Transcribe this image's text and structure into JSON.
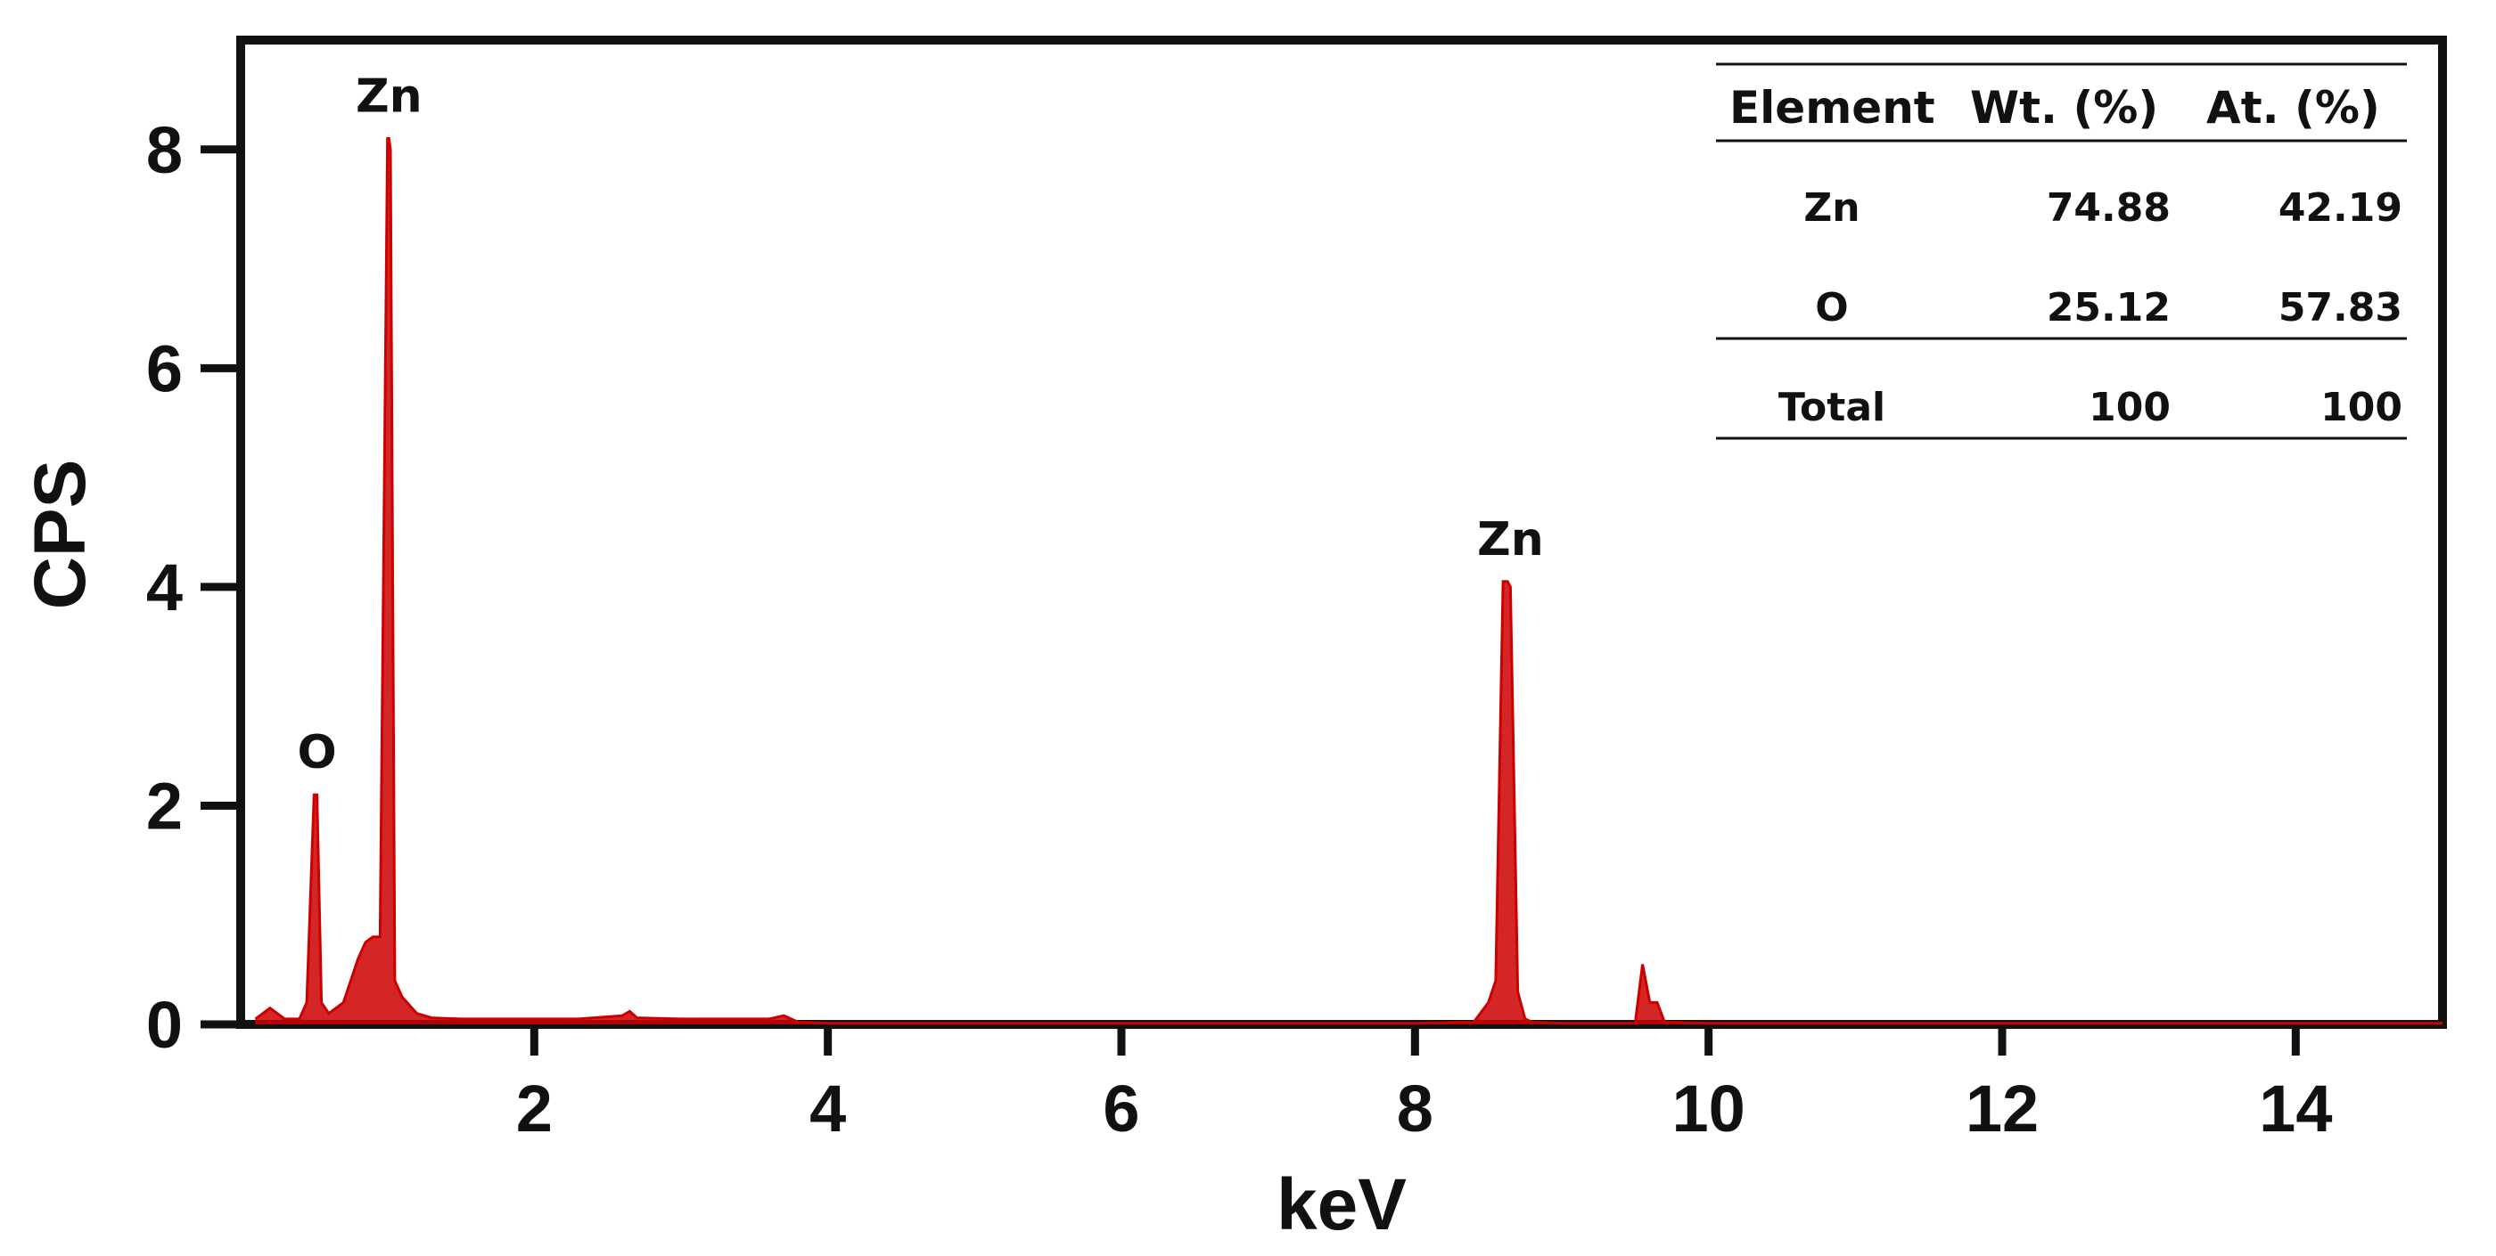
{
  "chart_data": {
    "type": "line",
    "xlabel": "keV",
    "ylabel": "CPS",
    "xlim": [
      0,
      15
    ],
    "ylim": [
      0,
      9
    ],
    "x_ticks": [
      "2",
      "4",
      "6",
      "8",
      "10",
      "12",
      "14"
    ],
    "y_ticks": [
      "0",
      "2",
      "4",
      "6",
      "8"
    ],
    "grid": false,
    "color": "#cc0000",
    "series": [
      {
        "x": [
          0.1,
          0.2,
          0.3,
          0.4,
          0.45,
          0.5,
          0.52,
          0.55,
          0.6,
          0.7,
          0.8,
          0.85,
          0.9,
          0.95,
          1.0,
          1.01,
          1.02,
          1.05,
          1.1,
          1.2,
          1.3,
          1.5,
          1.8,
          2.0,
          2.3,
          2.6,
          2.65,
          2.7,
          3.0,
          3.3,
          3.6,
          3.7,
          3.8,
          4.0,
          5.0,
          6.0,
          7.0,
          8.0,
          8.4,
          8.5,
          8.55,
          8.6,
          8.63,
          8.65,
          8.7,
          8.75,
          8.8,
          9.0,
          9.5,
          9.55,
          9.6,
          9.65,
          9.7,
          10.0,
          11.0,
          12.0,
          13.0,
          14.0,
          15.0
        ],
        "values": [
          0.05,
          0.15,
          0.05,
          0.05,
          0.2,
          2.1,
          2.1,
          0.2,
          0.1,
          0.2,
          0.6,
          0.75,
          0.8,
          0.8,
          8.1,
          8.1,
          8.0,
          0.4,
          0.25,
          0.1,
          0.06,
          0.05,
          0.05,
          0.05,
          0.05,
          0.08,
          0.12,
          0.06,
          0.05,
          0.05,
          0.05,
          0.08,
          0.02,
          0.01,
          0.01,
          0.01,
          0.01,
          0.01,
          0.02,
          0.2,
          0.4,
          4.05,
          4.05,
          4.0,
          0.3,
          0.05,
          0.02,
          0.01,
          0.01,
          0.55,
          0.2,
          0.2,
          0.02,
          0.01,
          0.01,
          0.01,
          0.01,
          0.01,
          0.01
        ]
      }
    ],
    "annotations": [
      {
        "text": "O",
        "x": 0.52,
        "y": 2.1
      },
      {
        "text": "Zn",
        "x": 1.01,
        "y": 8.1
      },
      {
        "text": "Zn",
        "x": 8.65,
        "y": 4.05
      }
    ],
    "table": {
      "headers": [
        "Element",
        "Wt. (%)",
        "At. (%)"
      ],
      "rows": [
        [
          "Zn",
          "74.88",
          "42.19"
        ],
        [
          "O",
          "25.12",
          "57.83"
        ],
        [
          "Total",
          "100",
          "100"
        ]
      ]
    }
  }
}
